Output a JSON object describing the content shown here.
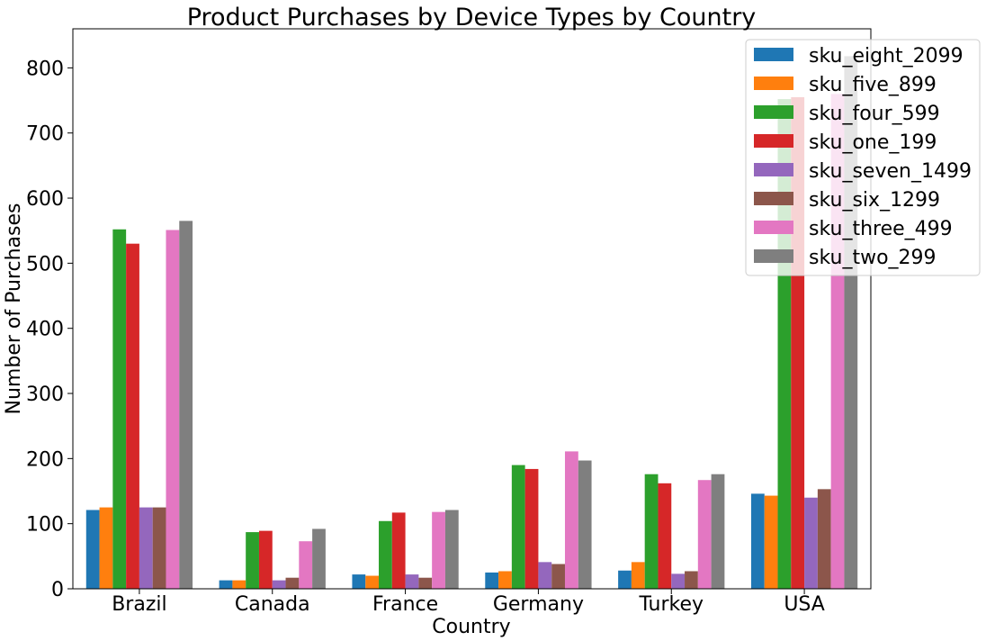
{
  "chart_data": {
    "type": "bar",
    "title": "Product Purchases by Device Types by Country",
    "xlabel": "Country",
    "ylabel": "Number of Purchases",
    "ylim": [
      0,
      860
    ],
    "yticks": [
      0,
      100,
      200,
      300,
      400,
      500,
      600,
      700,
      800
    ],
    "categories": [
      "Brazil",
      "Canada",
      "France",
      "Germany",
      "Turkey",
      "USA"
    ],
    "grid": false,
    "legend_position": "top-right",
    "series": [
      {
        "name": "sku_eight_2099",
        "color": "#1f77b4",
        "values": [
          121,
          13,
          22,
          25,
          28,
          146
        ]
      },
      {
        "name": "sku_five_899",
        "color": "#ff7f0e",
        "values": [
          125,
          13,
          20,
          27,
          41,
          143
        ]
      },
      {
        "name": "sku_four_599",
        "color": "#2ca02c",
        "values": [
          552,
          87,
          104,
          190,
          176,
          752
        ]
      },
      {
        "name": "sku_one_199",
        "color": "#d62728",
        "values": [
          530,
          89,
          117,
          184,
          162,
          755
        ]
      },
      {
        "name": "sku_seven_1499",
        "color": "#9467bd",
        "values": [
          125,
          13,
          22,
          41,
          23,
          140
        ]
      },
      {
        "name": "sku_six_1299",
        "color": "#8c564b",
        "values": [
          125,
          17,
          17,
          38,
          27,
          153
        ]
      },
      {
        "name": "sku_three_499",
        "color": "#e377c2",
        "values": [
          551,
          73,
          118,
          211,
          167,
          760
        ]
      },
      {
        "name": "sku_two_299",
        "color": "#7f7f7f",
        "values": [
          565,
          92,
          121,
          197,
          176,
          818
        ]
      }
    ]
  }
}
